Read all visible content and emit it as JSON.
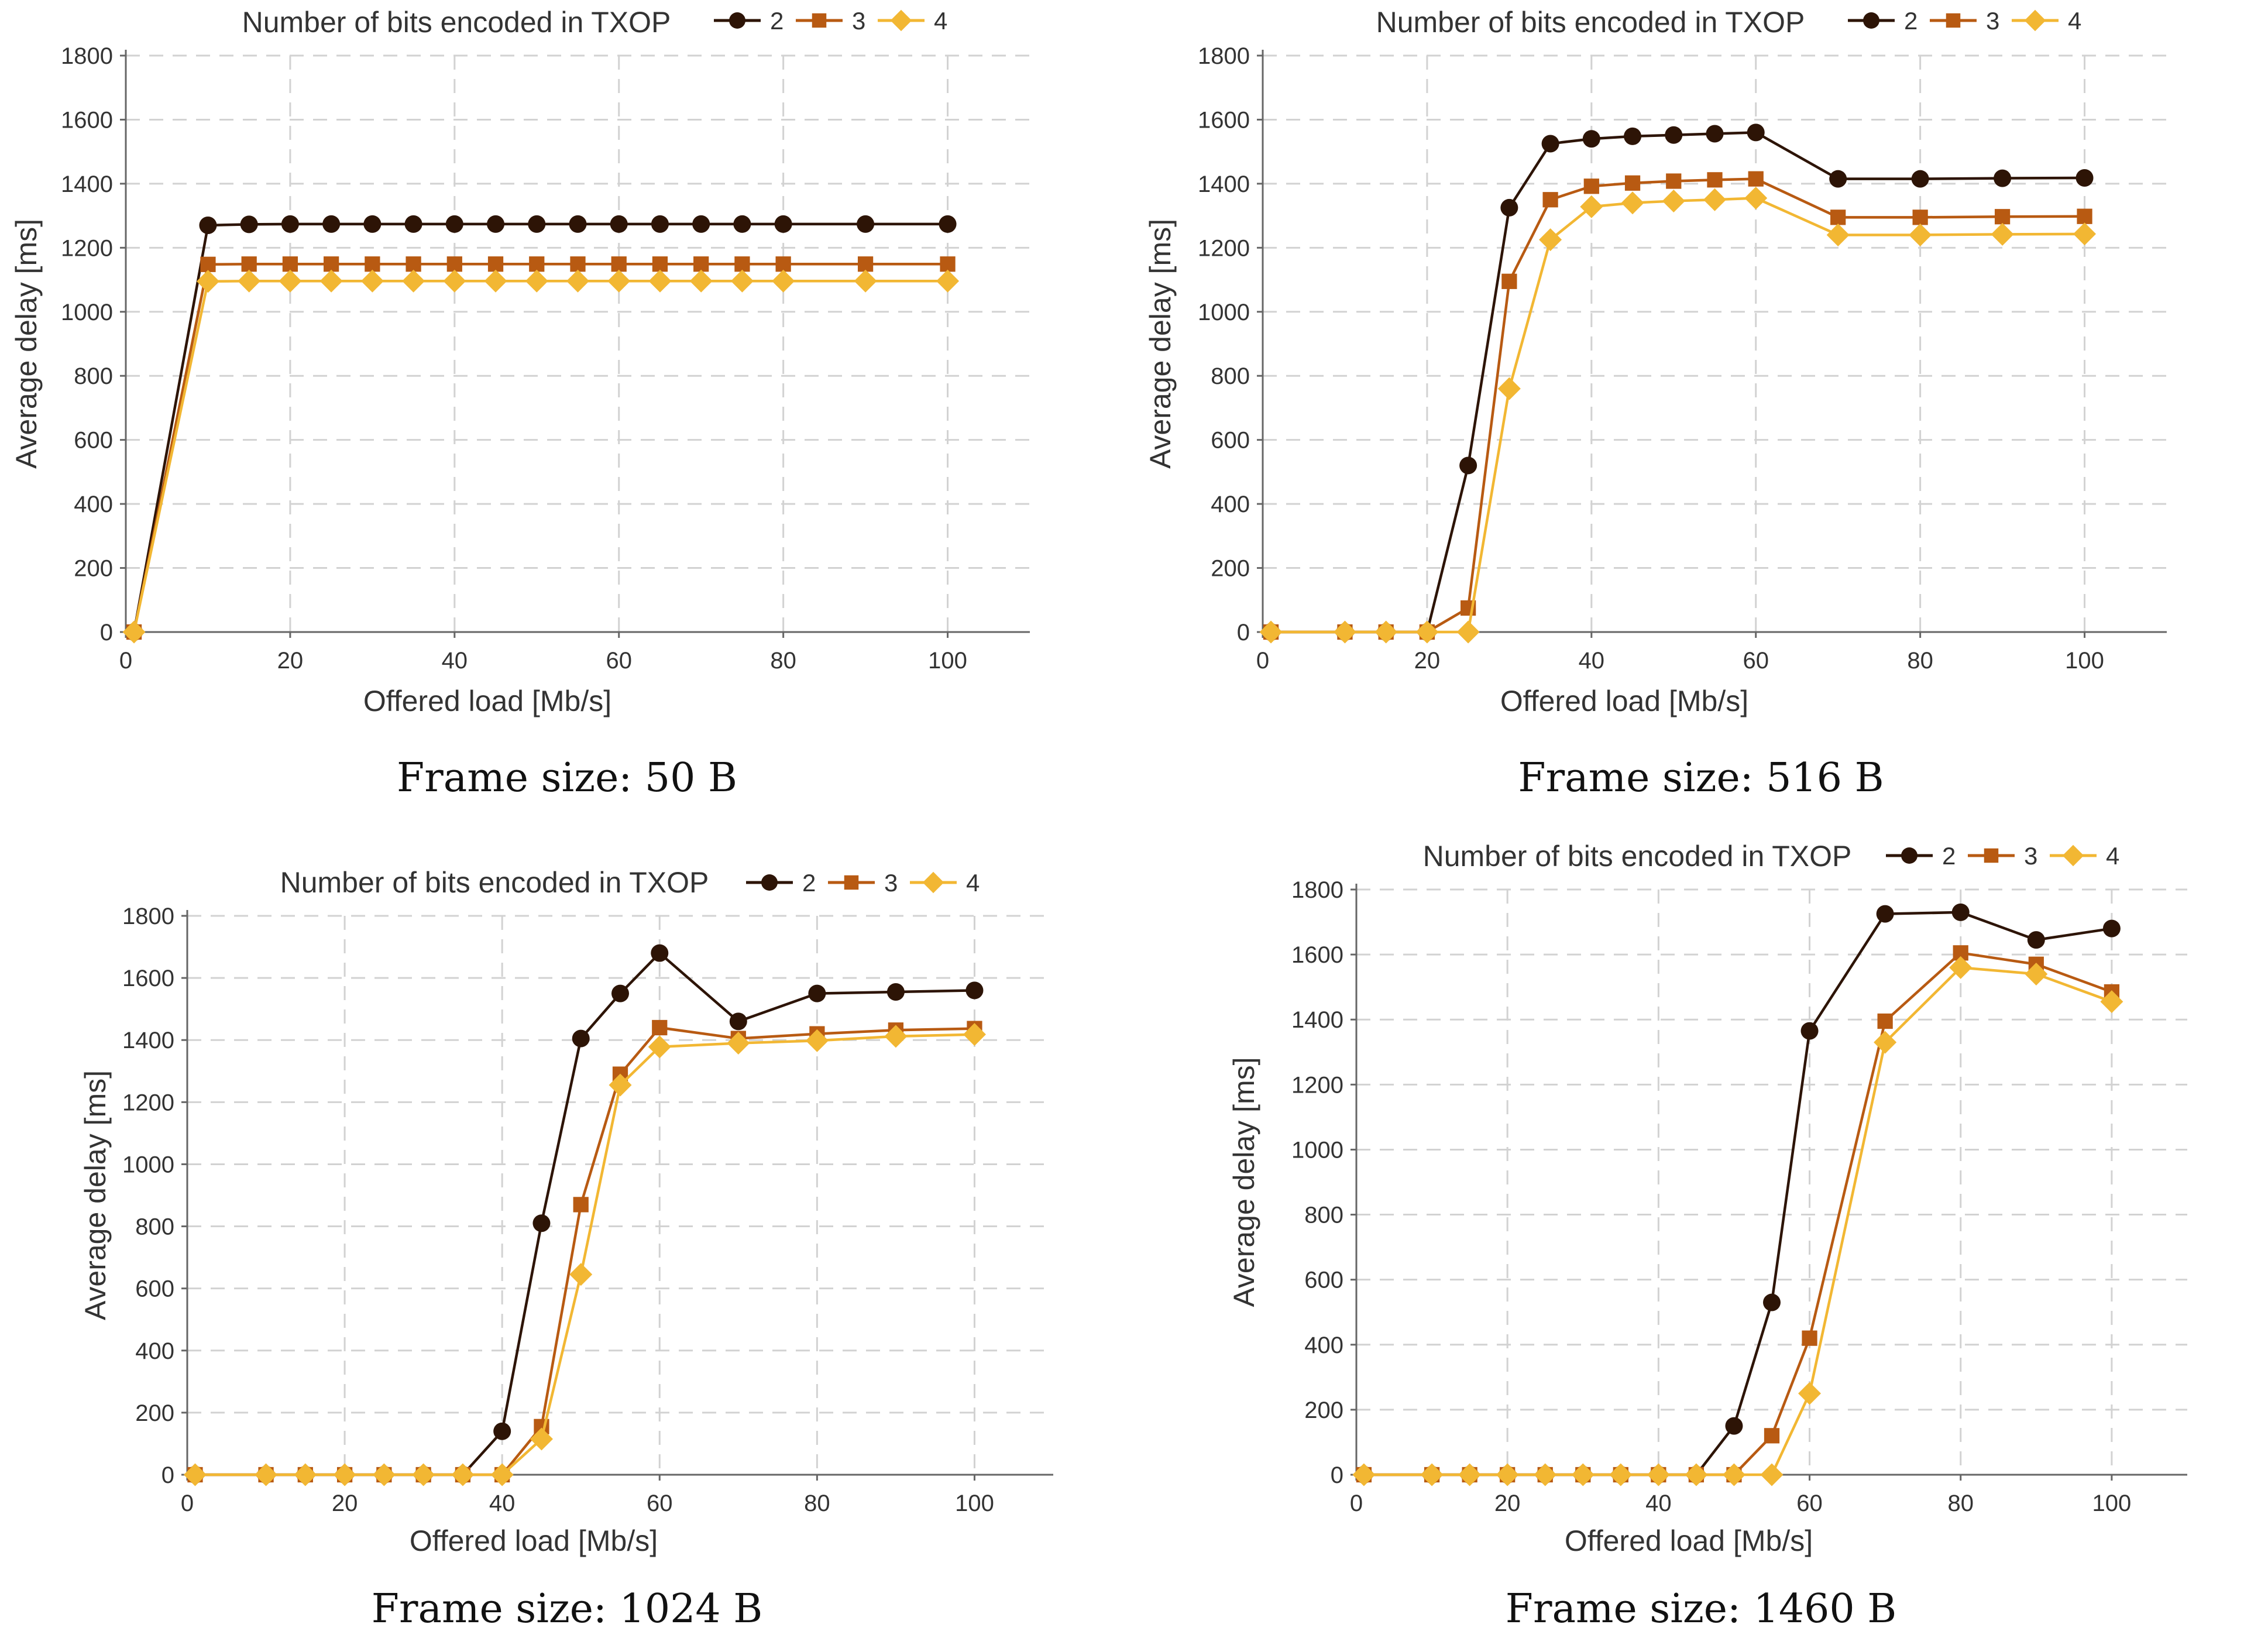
{
  "chart_data": [
    {
      "type": "line",
      "title": "Number of bits encoded in TXOP",
      "caption": "Frame size: 50 B",
      "xlabel": "Offered load [Mb/s]",
      "ylabel": "Average delay [ms]",
      "xlim": [
        0,
        110
      ],
      "ylim": [
        0,
        1800
      ],
      "xticks": [
        0,
        20,
        40,
        60,
        80,
        100
      ],
      "yticks": [
        0,
        200,
        400,
        600,
        800,
        1000,
        1200,
        1400,
        1600,
        1800
      ],
      "legend": "top-right",
      "x": [
        1,
        10,
        15,
        20,
        25,
        30,
        35,
        40,
        45,
        50,
        55,
        60,
        65,
        70,
        75,
        80,
        90,
        100
      ],
      "series": [
        {
          "name": "2",
          "color": "#2d1406",
          "marker": "circle",
          "values": [
            0,
            1270,
            1273,
            1274,
            1274,
            1274,
            1274,
            1274,
            1274,
            1274,
            1274,
            1274,
            1274,
            1274,
            1274,
            1274,
            1274,
            1274
          ]
        },
        {
          "name": "3",
          "color": "#b85a12",
          "marker": "square",
          "values": [
            0,
            1148,
            1149,
            1149,
            1149,
            1149,
            1149,
            1149,
            1149,
            1149,
            1149,
            1149,
            1149,
            1149,
            1149,
            1149,
            1149,
            1149
          ]
        },
        {
          "name": "4",
          "color": "#f2b733",
          "marker": "diamond",
          "values": [
            0,
            1095,
            1096,
            1096,
            1096,
            1096,
            1096,
            1096,
            1096,
            1096,
            1096,
            1096,
            1096,
            1096,
            1096,
            1096,
            1096,
            1096
          ]
        }
      ]
    },
    {
      "type": "line",
      "title": "Number of bits encoded in TXOP",
      "caption": "Frame size: 516 B",
      "xlabel": "Offered load [Mb/s]",
      "ylabel": "Average delay [ms]",
      "xlim": [
        0,
        110
      ],
      "ylim": [
        0,
        1800
      ],
      "xticks": [
        0,
        20,
        40,
        60,
        80,
        100
      ],
      "yticks": [
        0,
        200,
        400,
        600,
        800,
        1000,
        1200,
        1400,
        1600,
        1800
      ],
      "legend": "top-right",
      "x": [
        1,
        10,
        15,
        20,
        25,
        30,
        35,
        40,
        45,
        50,
        55,
        60,
        70,
        80,
        90,
        100
      ],
      "series": [
        {
          "name": "2",
          "color": "#2d1406",
          "marker": "circle",
          "values": [
            0,
            0,
            0,
            0,
            520,
            1325,
            1525,
            1540,
            1548,
            1552,
            1556,
            1560,
            1415,
            1415,
            1417,
            1418
          ]
        },
        {
          "name": "3",
          "color": "#b85a12",
          "marker": "square",
          "values": [
            0,
            0,
            0,
            0,
            75,
            1095,
            1350,
            1392,
            1402,
            1408,
            1412,
            1415,
            1295,
            1295,
            1297,
            1298
          ]
        },
        {
          "name": "4",
          "color": "#f2b733",
          "marker": "diamond",
          "values": [
            0,
            0,
            0,
            0,
            0,
            760,
            1225,
            1328,
            1340,
            1346,
            1350,
            1355,
            1240,
            1240,
            1242,
            1243
          ]
        }
      ]
    },
    {
      "type": "line",
      "title": "Number of bits encoded in TXOP",
      "caption": "Frame size: 1024 B",
      "xlabel": "Offered load [Mb/s]",
      "ylabel": "Average delay [ms]",
      "xlim": [
        0,
        110
      ],
      "ylim": [
        0,
        1800
      ],
      "xticks": [
        0,
        20,
        40,
        60,
        80,
        100
      ],
      "yticks": [
        0,
        200,
        400,
        600,
        800,
        1000,
        1200,
        1400,
        1600,
        1800
      ],
      "legend": "top-right",
      "x": [
        1,
        10,
        15,
        20,
        25,
        30,
        35,
        40,
        45,
        50,
        55,
        60,
        70,
        80,
        90,
        100
      ],
      "series": [
        {
          "name": "2",
          "color": "#2d1406",
          "marker": "circle",
          "values": [
            0,
            0,
            0,
            0,
            0,
            0,
            0,
            140,
            810,
            1405,
            1550,
            1680,
            1460,
            1550,
            1555,
            1560
          ]
        },
        {
          "name": "3",
          "color": "#b85a12",
          "marker": "square",
          "values": [
            0,
            0,
            0,
            0,
            0,
            0,
            0,
            0,
            155,
            870,
            1290,
            1440,
            1405,
            1420,
            1432,
            1437
          ]
        },
        {
          "name": "4",
          "color": "#f2b733",
          "marker": "diamond",
          "values": [
            0,
            0,
            0,
            0,
            0,
            0,
            0,
            0,
            115,
            645,
            1255,
            1378,
            1390,
            1398,
            1412,
            1418
          ]
        }
      ]
    },
    {
      "type": "line",
      "title": "Number of bits encoded in TXOP",
      "caption": "Frame size: 1460 B",
      "xlabel": "Offered load [Mb/s]",
      "ylabel": "Average delay [ms]",
      "xlim": [
        0,
        110
      ],
      "ylim": [
        0,
        1800
      ],
      "xticks": [
        0,
        20,
        40,
        60,
        80,
        100
      ],
      "yticks": [
        0,
        200,
        400,
        600,
        800,
        1000,
        1200,
        1400,
        1600,
        1800
      ],
      "legend": "top-right",
      "x": [
        1,
        10,
        15,
        20,
        25,
        30,
        35,
        40,
        45,
        50,
        55,
        60,
        70,
        80,
        90,
        100
      ],
      "series": [
        {
          "name": "2",
          "color": "#2d1406",
          "marker": "circle",
          "values": [
            0,
            0,
            0,
            0,
            0,
            0,
            0,
            0,
            0,
            150,
            530,
            1365,
            1725,
            1730,
            1645,
            1680
          ]
        },
        {
          "name": "3",
          "color": "#b85a12",
          "marker": "square",
          "values": [
            0,
            0,
            0,
            0,
            0,
            0,
            0,
            0,
            0,
            0,
            120,
            420,
            1395,
            1605,
            1570,
            1485
          ]
        },
        {
          "name": "4",
          "color": "#f2b733",
          "marker": "diamond",
          "values": [
            0,
            0,
            0,
            0,
            0,
            0,
            0,
            0,
            0,
            0,
            0,
            250,
            1330,
            1560,
            1540,
            1455
          ]
        }
      ]
    }
  ]
}
